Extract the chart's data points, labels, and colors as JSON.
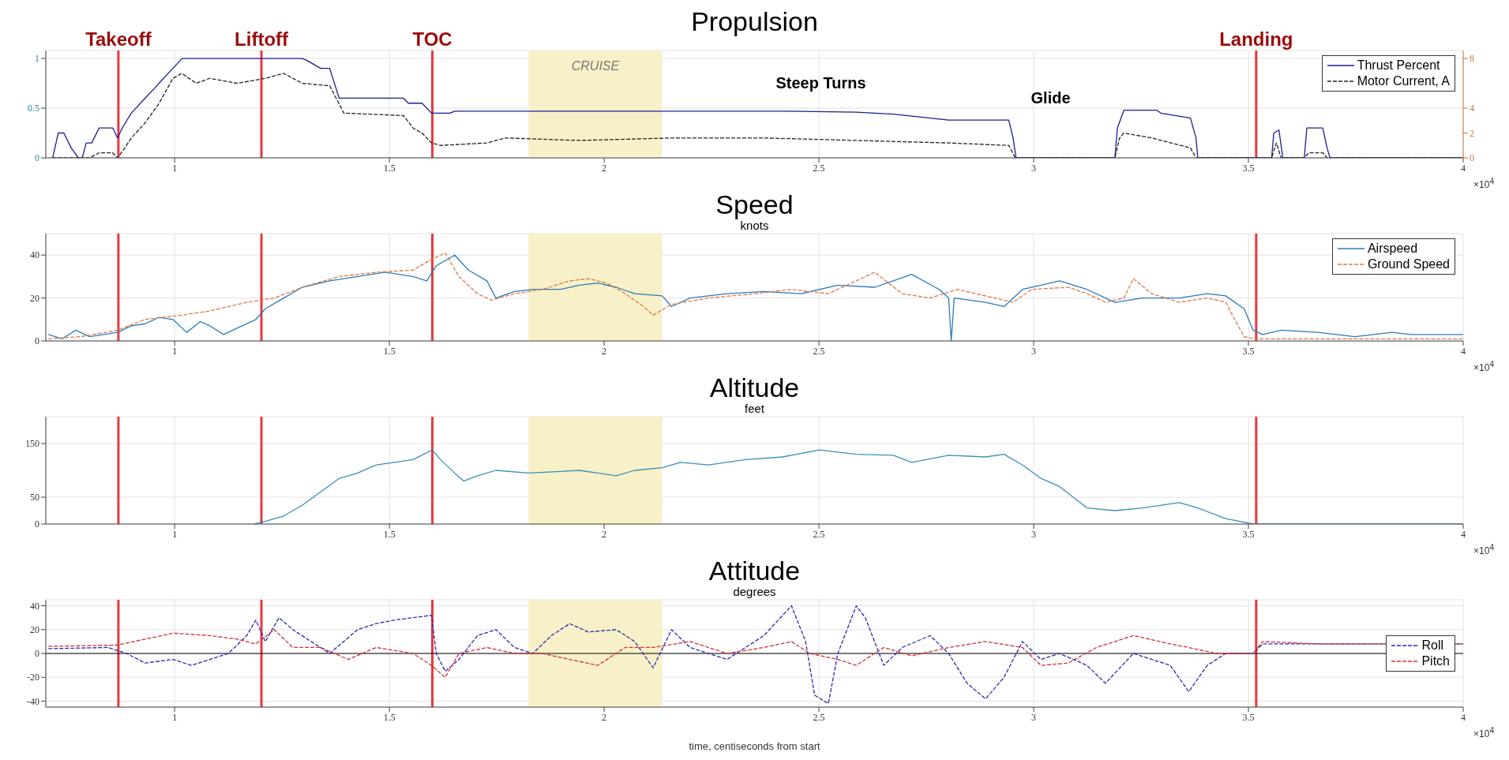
{
  "chart_data": [
    {
      "type": "line",
      "title": "Propulsion",
      "xlim": [
        0.7,
        4
      ],
      "xticks": [
        1,
        1.5,
        2,
        2.5,
        3,
        3.5,
        4
      ],
      "ylim": [
        0,
        1.08
      ],
      "yticks": [
        0,
        0.5,
        1
      ],
      "y2lim": [
        0,
        8.64
      ],
      "y2ticks": [
        0,
        2,
        4,
        8
      ],
      "grid": true,
      "legend": "top right",
      "series": [
        {
          "name": "Thrust Percent",
          "color": "#1c1c94",
          "x": [
            0.716,
            0.729,
            0.742,
            0.759,
            0.776,
            0.785,
            0.794,
            0.807,
            0.824,
            0.856,
            0.867,
            0.878,
            0.899,
            0.931,
            0.953,
            0.974,
            0.996,
            1.017,
            1.297,
            1.308,
            1.34,
            1.361,
            1.383,
            1.533,
            1.544,
            1.576,
            1.598,
            1.641,
            1.652,
            2.415,
            2.587,
            2.673,
            2.802,
            2.942,
            2.952,
            2.959,
            3.189,
            3.195,
            3.21,
            3.286,
            3.296,
            3.365,
            3.378,
            3.382,
            3.554,
            3.559,
            3.571,
            3.58,
            3.63,
            3.636,
            3.673,
            3.683,
            3.69,
            4
          ],
          "values": [
            0,
            0.25,
            0.25,
            0.1,
            0,
            0,
            0.15,
            0.15,
            0.3,
            0.3,
            0.2,
            0.3,
            0.45,
            0.6,
            0.7,
            0.8,
            0.9,
            1,
            1,
            0.98,
            0.9,
            0.9,
            0.6,
            0.6,
            0.55,
            0.55,
            0.45,
            0.45,
            0.47,
            0.47,
            0.46,
            0.44,
            0.38,
            0.38,
            0.2,
            0,
            0,
            0.3,
            0.48,
            0.48,
            0.45,
            0.4,
            0.2,
            0,
            0,
            0.25,
            0.28,
            0,
            0,
            0.3,
            0.3,
            0.1,
            0,
            0
          ]
        },
        {
          "name": "Motor Current, A",
          "color": "#222222",
          "axis": "y2",
          "line_style": "dashed",
          "x": [
            0.716,
            0.802,
            0.824,
            0.856,
            0.867,
            0.884,
            0.899,
            0.931,
            0.964,
            0.996,
            1.017,
            1.05,
            1.082,
            1.146,
            1.211,
            1.254,
            1.297,
            1.361,
            1.394,
            1.533,
            1.555,
            1.576,
            1.598,
            1.619,
            1.727,
            1.77,
            1.942,
            2.157,
            2.372,
            2.587,
            2.802,
            2.942,
            2.957,
            3.189,
            3.2,
            3.21,
            3.275,
            3.365,
            3.378,
            3.554,
            3.565,
            3.576,
            3.63,
            3.64,
            3.673,
            3.683,
            4
          ],
          "values": [
            0,
            0,
            0.4,
            0.4,
            0,
            0.8,
            1.6,
            2.8,
            4.4,
            6.4,
            6.8,
            6,
            6.4,
            6,
            6.4,
            6.8,
            6,
            5.8,
            3.6,
            3.4,
            2.4,
            2,
            1.2,
            1,
            1.2,
            1.6,
            1.4,
            1.6,
            1.6,
            1.4,
            1.2,
            1,
            0,
            0,
            1.6,
            2,
            1.6,
            0.8,
            0,
            0,
            1.2,
            0,
            0,
            0.4,
            0.4,
            0,
            0
          ]
        }
      ],
      "ref_lines": [
        {
          "axis": "x",
          "value": 0.869,
          "label": "Takeoff",
          "color": "#e8383d"
        },
        {
          "axis": "x",
          "value": 1.202,
          "label": "Liftoff",
          "color": "#e8383d"
        },
        {
          "axis": "x",
          "value": 1.6,
          "label": "TOC",
          "color": "#e8383d"
        },
        {
          "axis": "x",
          "value": 3.518,
          "label": "Landing",
          "color": "#e8383d"
        }
      ],
      "bands": [
        {
          "axis": "x",
          "from": 1.824,
          "to": 2.135,
          "label": "CRUISE",
          "color": "#f8f0c8"
        }
      ],
      "annotations": [
        "Steep Turns",
        "Glide",
        "×10$^{4}$"
      ]
    },
    {
      "type": "line",
      "title": "Speed",
      "subtitle": "knots",
      "xlim": [
        0.7,
        4
      ],
      "xticks": [
        1,
        1.5,
        2,
        2.5,
        3,
        3.5,
        4
      ],
      "ylim": [
        0,
        50
      ],
      "yticks": [
        0,
        20,
        40
      ],
      "grid": true,
      "legend": "top right",
      "series": [
        {
          "name": "Airspeed",
          "color": "#2b7bb9",
          "x": [
            0.706,
            0.738,
            0.77,
            0.802,
            0.867,
            0.899,
            0.931,
            0.964,
            0.996,
            1.028,
            1.06,
            1.082,
            1.114,
            1.146,
            1.189,
            1.211,
            1.254,
            1.297,
            1.361,
            1.426,
            1.49,
            1.555,
            1.587,
            1.609,
            1.652,
            1.684,
            1.727,
            1.748,
            1.791,
            1.834,
            1.899,
            1.942,
            1.985,
            2.028,
            2.071,
            2.135,
            2.157,
            2.2,
            2.286,
            2.372,
            2.458,
            2.544,
            2.63,
            2.673,
            2.716,
            2.78,
            2.802,
            2.808,
            2.815,
            2.888,
            2.931,
            2.974,
            3.017,
            3.06,
            3.124,
            3.189,
            3.253,
            3.339,
            3.404,
            3.447,
            3.49,
            3.511,
            3.533,
            3.576,
            3.662,
            3.748,
            3.834,
            3.877,
            4
          ],
          "values": [
            3,
            1,
            5,
            2,
            4,
            7,
            8,
            11,
            10,
            4,
            9,
            7,
            3,
            6,
            10,
            15,
            20,
            25,
            28,
            30,
            32,
            30,
            28,
            35,
            40,
            33,
            28,
            20,
            23,
            24,
            24,
            26,
            27,
            25,
            22,
            21,
            16,
            20,
            22,
            23,
            22,
            26,
            25,
            28,
            31,
            24,
            20,
            0,
            20,
            18,
            16,
            24,
            26,
            28,
            24,
            18,
            20,
            20,
            22,
            21,
            15,
            5,
            3,
            5,
            4,
            2,
            4,
            3,
            3
          ]
        },
        {
          "name": "Ground Speed",
          "color": "#d97b45",
          "line_style": "dashed",
          "x": [
            0.706,
            0.781,
            0.867,
            0.931,
            1.017,
            1.082,
            1.168,
            1.232,
            1.297,
            1.383,
            1.469,
            1.555,
            1.598,
            1.63,
            1.662,
            1.705,
            1.738,
            1.791,
            1.856,
            1.92,
            1.963,
            2.006,
            2.049,
            2.092,
            2.114,
            2.157,
            2.243,
            2.35,
            2.436,
            2.522,
            2.587,
            2.63,
            2.694,
            2.759,
            2.823,
            2.909,
            2.952,
            2.995,
            3.081,
            3.124,
            3.167,
            3.21,
            3.232,
            3.275,
            3.339,
            3.404,
            3.447,
            3.468,
            3.49,
            3.511,
            4
          ],
          "values": [
            1,
            2,
            5,
            10,
            12,
            14,
            18,
            20,
            25,
            30,
            32,
            33,
            38,
            41,
            30,
            22,
            19,
            22,
            24,
            28,
            29,
            27,
            22,
            16,
            12,
            17,
            20,
            22,
            24,
            22,
            28,
            32,
            22,
            20,
            24,
            20,
            18,
            24,
            25,
            22,
            18,
            20,
            29,
            22,
            18,
            20,
            18,
            10,
            2,
            1,
            1
          ]
        }
      ],
      "ref_lines": [
        {
          "axis": "x",
          "value": 0.869,
          "color": "#e8383d"
        },
        {
          "axis": "x",
          "value": 1.202,
          "color": "#e8383d"
        },
        {
          "axis": "x",
          "value": 1.6,
          "color": "#e8383d"
        },
        {
          "axis": "x",
          "value": 3.518,
          "color": "#e8383d"
        }
      ],
      "bands": [
        {
          "axis": "x",
          "from": 1.824,
          "to": 2.135,
          "color": "#f8f0c8"
        }
      ],
      "annotations": [
        "×10$^{4}$"
      ]
    },
    {
      "type": "line",
      "title": "Altitude",
      "subtitle": "feet",
      "xlim": [
        0.7,
        4
      ],
      "xticks": [
        1,
        1.5,
        2,
        2.5,
        3,
        3.5,
        4
      ],
      "ylim": [
        0,
        200
      ],
      "yticks": [
        0,
        50,
        150
      ],
      "grid": true,
      "series": [
        {
          "color": "#3a8fb7",
          "x": [
            1.185,
            1.211,
            1.254,
            1.297,
            1.34,
            1.383,
            1.426,
            1.469,
            1.512,
            1.555,
            1.6,
            1.619,
            1.652,
            1.673,
            1.705,
            1.748,
            1.824,
            1.899,
            1.942,
            2.028,
            2.071,
            2.135,
            2.178,
            2.243,
            2.329,
            2.415,
            2.501,
            2.587,
            2.673,
            2.716,
            2.802,
            2.888,
            2.931,
            2.974,
            3.017,
            3.06,
            3.124,
            3.189,
            3.253,
            3.339,
            3.382,
            3.447,
            3.511,
            4
          ],
          "values": [
            0,
            5,
            15,
            35,
            60,
            85,
            95,
            110,
            115,
            120,
            138,
            120,
            95,
            80,
            90,
            100,
            95,
            98,
            100,
            90,
            100,
            105,
            115,
            110,
            120,
            125,
            138,
            130,
            128,
            115,
            128,
            125,
            130,
            110,
            85,
            70,
            30,
            25,
            30,
            40,
            30,
            10,
            0,
            0
          ]
        }
      ],
      "ref_lines": [
        {
          "axis": "x",
          "value": 0.869,
          "color": "#e8383d"
        },
        {
          "axis": "x",
          "value": 1.202,
          "color": "#e8383d"
        },
        {
          "axis": "x",
          "value": 1.6,
          "color": "#e8383d"
        },
        {
          "axis": "x",
          "value": 3.518,
          "color": "#e8383d"
        }
      ],
      "bands": [
        {
          "axis": "x",
          "from": 1.824,
          "to": 2.135,
          "color": "#f8f0c8"
        }
      ],
      "annotations": [
        "×10$^{4}$"
      ]
    },
    {
      "type": "line",
      "title": "Attitude",
      "subtitle": "degrees",
      "xlabel": "time, centiseconds from start",
      "xlim": [
        0.7,
        4
      ],
      "xticks": [
        1,
        1.5,
        2,
        2.5,
        3,
        3.5,
        4
      ],
      "ylim": [
        -45,
        45
      ],
      "yticks": [
        -40,
        -20,
        0,
        20,
        40
      ],
      "grid": true,
      "legend": "right",
      "series": [
        {
          "name": "Roll",
          "color": "#2a2ab0",
          "line_style": "dashed",
          "x": [
            0.706,
            0.845,
            0.888,
            0.931,
            0.996,
            1.039,
            1.082,
            1.125,
            1.168,
            1.189,
            1.211,
            1.243,
            1.275,
            1.318,
            1.361,
            1.426,
            1.469,
            1.512,
            1.555,
            1.598,
            1.609,
            1.63,
            1.662,
            1.705,
            1.748,
            1.791,
            1.834,
            1.877,
            1.92,
            1.963,
            2.028,
            2.071,
            2.114,
            2.157,
            2.2,
            2.286,
            2.372,
            2.436,
            2.469,
            2.49,
            2.522,
            2.544,
            2.587,
            2.608,
            2.651,
            2.694,
            2.759,
            2.802,
            2.845,
            2.888,
            2.931,
            2.974,
            3.017,
            3.06,
            3.124,
            3.167,
            3.232,
            3.318,
            3.361,
            3.404,
            3.447,
            3.511,
            3.533,
            4
          ],
          "values": [
            4,
            5,
            0,
            -8,
            -5,
            -10,
            -5,
            0,
            15,
            28,
            10,
            30,
            20,
            10,
            0,
            20,
            25,
            28,
            30,
            32,
            0,
            -15,
            -5,
            15,
            20,
            5,
            0,
            15,
            25,
            18,
            20,
            10,
            -12,
            20,
            5,
            -5,
            15,
            40,
            10,
            -35,
            -42,
            0,
            40,
            30,
            -10,
            5,
            15,
            0,
            -25,
            -38,
            -20,
            10,
            -5,
            0,
            -10,
            -25,
            0,
            -10,
            -32,
            -10,
            0,
            0,
            8,
            8
          ]
        },
        {
          "name": "Pitch",
          "color": "#d0303a",
          "line_style": "dashed",
          "x": [
            0.706,
            0.867,
            0.931,
            0.996,
            1.082,
            1.146,
            1.189,
            1.232,
            1.275,
            1.34,
            1.404,
            1.469,
            1.555,
            1.598,
            1.63,
            1.662,
            1.727,
            1.791,
            1.856,
            1.92,
            1.985,
            2.049,
            2.114,
            2.2,
            2.286,
            2.372,
            2.436,
            2.479,
            2.544,
            2.587,
            2.651,
            2.716,
            2.802,
            2.888,
            2.974,
            3.017,
            3.081,
            3.146,
            3.232,
            3.318,
            3.361,
            3.425,
            3.511,
            3.533,
            3.662,
            4
          ],
          "values": [
            6,
            7,
            12,
            17,
            15,
            12,
            8,
            20,
            5,
            5,
            -5,
            5,
            0,
            -10,
            -20,
            0,
            5,
            0,
            0,
            -5,
            -10,
            5,
            5,
            10,
            0,
            5,
            10,
            0,
            -5,
            -10,
            5,
            -2,
            5,
            10,
            5,
            -10,
            -8,
            5,
            15,
            8,
            5,
            0,
            0,
            10,
            8,
            8
          ]
        }
      ],
      "ref_lines": [
        {
          "axis": "x",
          "value": 0.869,
          "color": "#e8383d"
        },
        {
          "axis": "x",
          "value": 1.202,
          "color": "#e8383d"
        },
        {
          "axis": "x",
          "value": 1.6,
          "color": "#e8383d"
        },
        {
          "axis": "x",
          "value": 3.518,
          "color": "#e8383d"
        },
        {
          "axis": "y",
          "value": 0,
          "color": "#000000"
        }
      ],
      "bands": [
        {
          "axis": "x",
          "from": 1.824,
          "to": 2.135,
          "color": "#f8f0c8"
        }
      ],
      "annotations": [
        "×10$^{4}$"
      ]
    }
  ]
}
